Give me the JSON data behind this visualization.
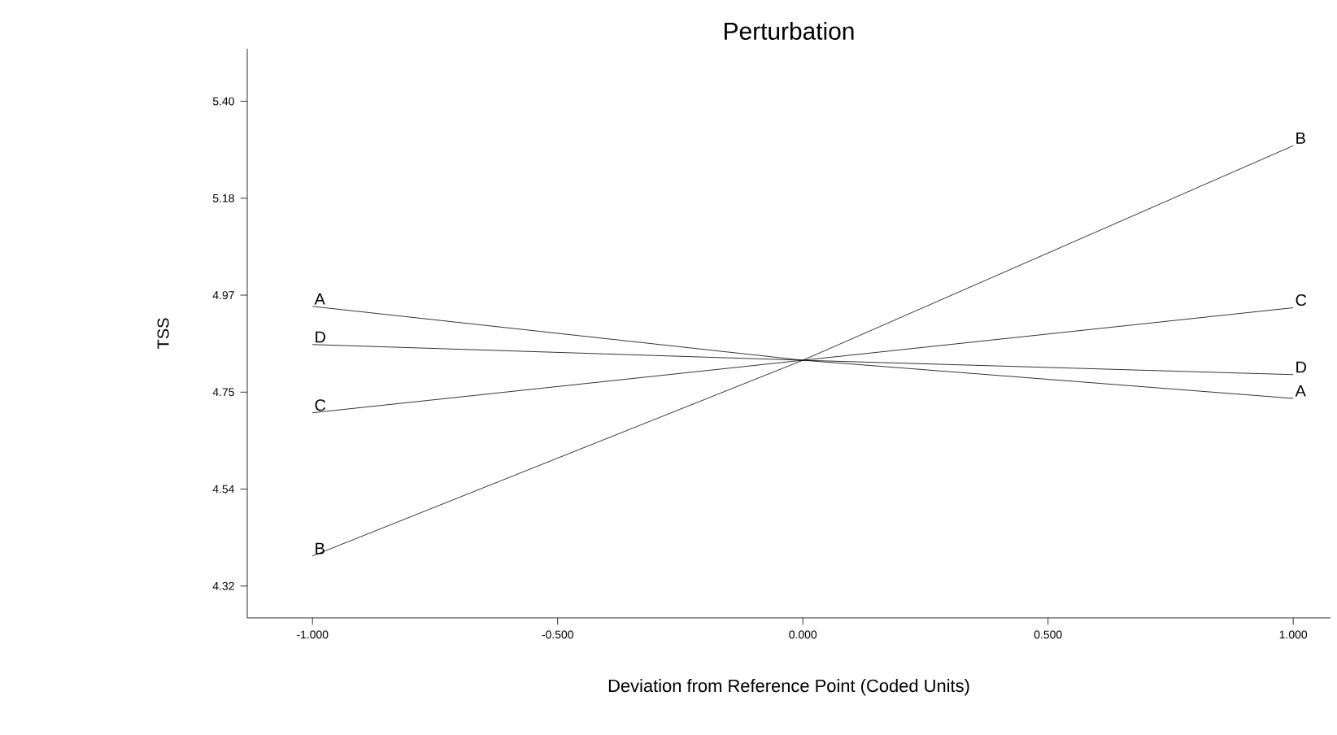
{
  "chart_data": {
    "type": "line",
    "title": "Perturbation",
    "xlabel": "Deviation from Reference Point (Coded Units)",
    "ylabel": "TSS",
    "x": [
      -1,
      0,
      1
    ],
    "series": [
      {
        "name": "A",
        "color": "#000000",
        "values": [
          4.943,
          4.823,
          4.738
        ]
      },
      {
        "name": "B",
        "color": "#000000",
        "values": [
          4.387,
          4.823,
          5.301
        ]
      },
      {
        "name": "C",
        "color": "#000000",
        "values": [
          4.706,
          4.823,
          4.94
        ]
      },
      {
        "name": "D",
        "color": "#000000",
        "values": [
          4.858,
          4.823,
          4.791
        ]
      }
    ],
    "xlim": [
      -1.133,
      1.076
    ],
    "ylim": [
      4.249,
      5.517
    ],
    "xticks": [
      {
        "value": -1,
        "label": "-1.000"
      },
      {
        "value": -0.5,
        "label": "-0.500"
      },
      {
        "value": 0,
        "label": "0.000"
      },
      {
        "value": 0.5,
        "label": "0.500"
      },
      {
        "value": 1,
        "label": "1.000"
      }
    ],
    "yticks": [
      {
        "value": 4.32,
        "label": "4.32"
      },
      {
        "value": 4.536,
        "label": "4.54"
      },
      {
        "value": 4.752,
        "label": "4.75"
      },
      {
        "value": 4.968,
        "label": "4.97"
      },
      {
        "value": 5.184,
        "label": "5.18"
      },
      {
        "value": 5.4,
        "label": "5.40"
      }
    ],
    "grid": false,
    "legend": false,
    "marker": "none",
    "line_style": "solid"
  }
}
